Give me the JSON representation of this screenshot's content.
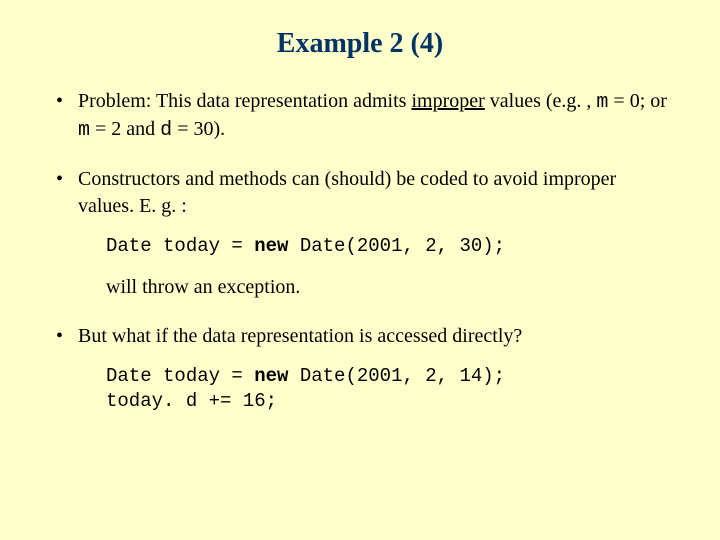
{
  "background_color": "#ffffcc",
  "title_color": "#003366",
  "text_color": "#000000",
  "body_font": "Times New Roman",
  "code_font": "Courier New",
  "title_fontsize": 28,
  "body_fontsize": 20,
  "code_fontsize": 19,
  "title": "Example 2 (4)",
  "bullet1": {
    "pre": "Problem: This data representation admits ",
    "underlined": "improper",
    "post1": " values (e.g. , ",
    "m1": "m",
    "eq0": " = 0; or ",
    "m2": "m",
    "eq2": " = 2 and ",
    "d": "d",
    "eq30": " = 30)."
  },
  "bullet2": "Constructors and methods can (should) be coded to avoid improper values. E. g. :",
  "code1": {
    "pre": "Date today = ",
    "kw": "new",
    "post": " Date(2001, 2, 30);"
  },
  "follow1": "will throw an exception.",
  "bullet3": "But what if the data representation is accessed directly?",
  "code2": {
    "line1pre": "Date today = ",
    "line1kw": "new",
    "line1post": " Date(2001, 2, 14);",
    "line2": "today. d += 16;"
  }
}
